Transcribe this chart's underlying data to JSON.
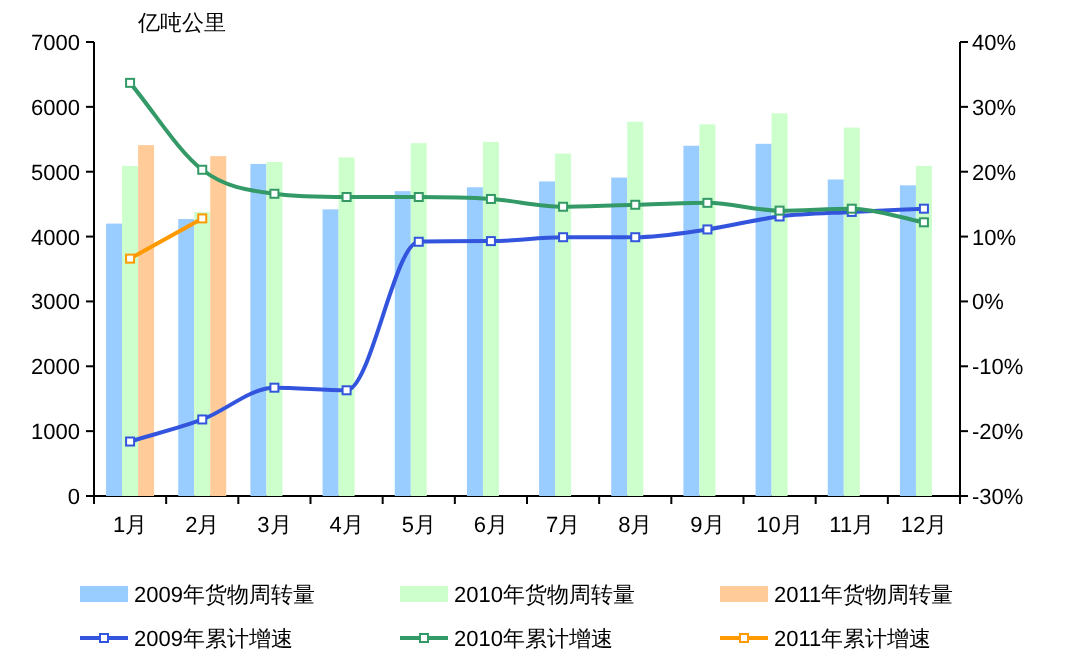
{
  "chart_data": {
    "type": "bar",
    "ylabel": "亿吨公里",
    "categories": [
      "1月",
      "2月",
      "3月",
      "4月",
      "5月",
      "6月",
      "7月",
      "8月",
      "9月",
      "10月",
      "11月",
      "12月"
    ],
    "ylim": [
      0,
      7000
    ],
    "yticks": [
      0,
      1000,
      2000,
      3000,
      4000,
      5000,
      6000,
      7000
    ],
    "y2lim": [
      -30,
      40
    ],
    "y2ticks": [
      {
        "value": -30,
        "label": "-30%"
      },
      {
        "value": -20,
        "label": "-20%"
      },
      {
        "value": -10,
        "label": "-10%"
      },
      {
        "value": 0,
        "label": "0%"
      },
      {
        "value": 10,
        "label": "10%"
      },
      {
        "value": 20,
        "label": "20%"
      },
      {
        "value": 30,
        "label": "30%"
      },
      {
        "value": 40,
        "label": "40%"
      }
    ],
    "legend": "bottom",
    "series": [
      {
        "name": "2009年货物周转量",
        "color": "#99ccff",
        "values": [
          4200,
          4270,
          5120,
          4420,
          4700,
          4760,
          4850,
          4910,
          5400,
          5430,
          4880,
          4790
        ]
      },
      {
        "name": "2010年货物周转量",
        "color": "#ccffcc",
        "values": [
          5090,
          4380,
          5150,
          5220,
          5440,
          5460,
          5280,
          5770,
          5730,
          5900,
          5680,
          5090
        ]
      },
      {
        "name": "2011年货物周转量",
        "color": "#ffcc99",
        "values": [
          5410,
          5240,
          null,
          null,
          null,
          null,
          null,
          null,
          null,
          null,
          null,
          null
        ]
      },
      {
        "type": "line",
        "axis": "y2",
        "marker": "square",
        "name": "2009年累计增速",
        "color": "#3355dd",
        "values": [
          -21.6,
          -18.2,
          -13.3,
          -13.7,
          9.2,
          9.3,
          9.9,
          9.9,
          11.1,
          13.1,
          13.8,
          14.3
        ]
      },
      {
        "type": "line",
        "axis": "y2",
        "marker": "square",
        "name": "2010年累计增速",
        "color": "#339966",
        "values": [
          33.7,
          20.3,
          16.6,
          16.1,
          16.1,
          15.8,
          14.6,
          14.9,
          15.2,
          14.0,
          14.3,
          12.2
        ]
      },
      {
        "type": "line",
        "axis": "y2",
        "marker": "square",
        "name": "2011年累计增速",
        "color": "#ff9900",
        "values": [
          6.6,
          12.8,
          null,
          null,
          null,
          null,
          null,
          null,
          null,
          null,
          null,
          null
        ]
      }
    ]
  }
}
